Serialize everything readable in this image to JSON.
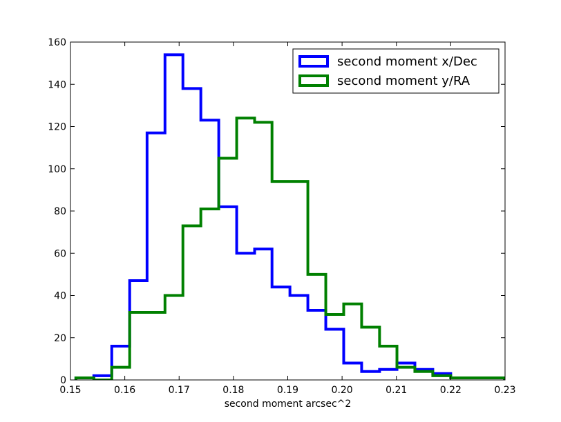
{
  "chart_data": {
    "type": "step-histogram",
    "title": "",
    "xlabel": "second moment arcsec^2",
    "ylabel": "",
    "xlim": [
      0.15,
      0.23
    ],
    "ylim": [
      0,
      160
    ],
    "xticks": [
      "0.15",
      "0.16",
      "0.17",
      "0.18",
      "0.19",
      "0.20",
      "0.21",
      "0.22",
      "0.23"
    ],
    "yticks": [
      "0",
      "20",
      "40",
      "60",
      "80",
      "100",
      "120",
      "140",
      "160"
    ],
    "grid": false,
    "legend_position": "top-right",
    "bin_edges": [
      0.151,
      0.1543,
      0.1576,
      0.1609,
      0.1641,
      0.1674,
      0.1707,
      0.174,
      0.1773,
      0.1806,
      0.1839,
      0.1871,
      0.1904,
      0.1937,
      0.197,
      0.2003,
      0.2036,
      0.2069,
      0.2101,
      0.2134,
      0.2167,
      0.22,
      0.2233,
      0.2266,
      0.2299
    ],
    "series": [
      {
        "name": "second moment x/Dec",
        "color": "#0000ff",
        "counts": [
          1,
          2,
          16,
          47,
          117,
          154,
          138,
          123,
          82,
          60,
          62,
          44,
          40,
          33,
          24,
          8,
          4,
          5,
          8,
          5,
          3,
          1,
          1,
          1
        ]
      },
      {
        "name": "second moment y/RA",
        "color": "#008000",
        "counts": [
          1,
          0,
          6,
          32,
          32,
          40,
          73,
          81,
          105,
          124,
          122,
          94,
          94,
          50,
          31,
          36,
          25,
          16,
          6,
          4,
          2,
          1,
          1,
          1
        ]
      }
    ]
  }
}
